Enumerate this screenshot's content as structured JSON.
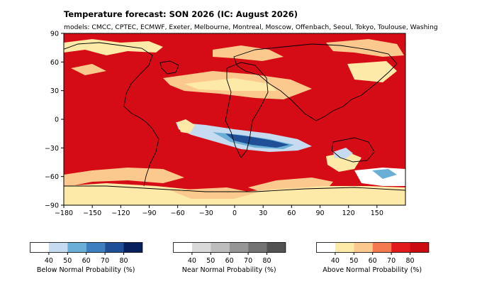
{
  "title": "Temperature forecast: SON 2026 (IC: August 2026)",
  "subtitle": "models: CMCC, CPTEC, ECMWF, Exeter, Melbourne, Montreal, Moscow, Offenbach, Seoul, Tokyo, Toulouse, Washing",
  "map": {
    "lon_ticks": [
      "−180",
      "−150",
      "−120",
      "−90",
      "−60",
      "−30",
      "0",
      "30",
      "60",
      "90",
      "120",
      "150"
    ],
    "lon_values": [
      -180,
      -150,
      -120,
      -90,
      -60,
      -30,
      0,
      30,
      60,
      90,
      120,
      150
    ],
    "lat_ticks": [
      "90",
      "60",
      "30",
      "0",
      "−30",
      "−60",
      "−90"
    ],
    "lat_values": [
      90,
      60,
      30,
      0,
      -30,
      -60,
      -90
    ],
    "lon_range": [
      -180,
      180
    ],
    "lat_range": [
      -90,
      90
    ],
    "background_category": "above-80"
  },
  "colorbars": [
    {
      "label": "Below Normal Probability (%)",
      "ticks": [
        "40",
        "50",
        "60",
        "70",
        "80"
      ],
      "colors": [
        "#ffffff",
        "#c6dbef",
        "#6baed6",
        "#3d7fbf",
        "#1f4f96",
        "#08215e"
      ]
    },
    {
      "label": "Near Normal Probability (%)",
      "ticks": [
        "40",
        "50",
        "60",
        "70",
        "80"
      ],
      "colors": [
        "#ffffff",
        "#d9d9d9",
        "#bdbdbd",
        "#969696",
        "#737373",
        "#525252"
      ]
    },
    {
      "label": "Above Normal Probability (%)",
      "ticks": [
        "40",
        "50",
        "60",
        "70",
        "80"
      ],
      "colors": [
        "#ffffff",
        "#fde9a8",
        "#fbc98d",
        "#f4794e",
        "#e31a1c",
        "#cc0a12"
      ]
    }
  ],
  "palette": {
    "above-80": "#d50c16",
    "above-70": "#e63a1f",
    "above-60": "#f4794e",
    "above-50": "#fbc98d",
    "above-40": "#fde9a8",
    "white": "#ffffff",
    "below-50": "#c6dbef",
    "below-60": "#6baed6",
    "below-70": "#3d7fbf",
    "below-80": "#1f4f96",
    "land": "#000000"
  }
}
